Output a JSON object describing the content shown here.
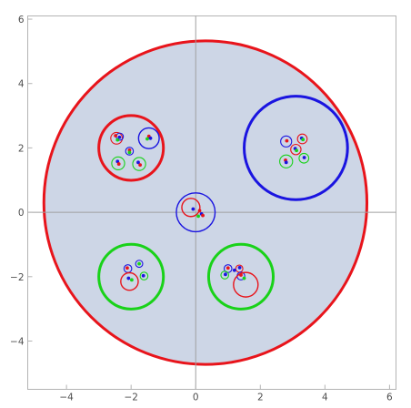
{
  "chart_data": {
    "type": "scatter",
    "title": "",
    "xlabel": "",
    "ylabel": "",
    "xlim": [
      -5.2,
      6.2
    ],
    "ylim": [
      -5.5,
      6.1
    ],
    "x_ticks": [
      -4,
      -2,
      0,
      2,
      4,
      6
    ],
    "y_ticks": [
      -4,
      -2,
      0,
      2,
      4,
      6
    ],
    "x_tick_labels": [
      "−4",
      "−2",
      "0",
      "2",
      "4",
      "6"
    ],
    "y_tick_labels": [
      "−4",
      "−2",
      "0",
      "2",
      "4",
      "6"
    ],
    "grid": false,
    "disk": {
      "cx": 0.3,
      "cy": 0.3,
      "r": 5.0,
      "fill": "#cdd6e6",
      "stroke": "#e8141b"
    },
    "circles": [
      {
        "cx": -2.0,
        "cy": 2.0,
        "r": 1.0,
        "color": "#e8141b"
      },
      {
        "cx": 3.1,
        "cy": 2.0,
        "r": 1.6,
        "color": "#1a14e0"
      },
      {
        "cx": 0.0,
        "cy": 0.0,
        "r": 0.6,
        "color": "#1a14e0"
      },
      {
        "cx": -2.0,
        "cy": -2.0,
        "r": 1.0,
        "color": "#19d219"
      },
      {
        "cx": 1.4,
        "cy": -2.0,
        "r": 1.0,
        "color": "#19d219"
      },
      {
        "cx": -2.45,
        "cy": 2.3,
        "r": 0.18,
        "color": "#e8141b"
      },
      {
        "cx": -2.35,
        "cy": 2.35,
        "r": 0.11,
        "color": "#1a14e0"
      },
      {
        "cx": -1.45,
        "cy": 2.3,
        "r": 0.32,
        "color": "#1a14e0"
      },
      {
        "cx": -2.05,
        "cy": 1.9,
        "r": 0.12,
        "color": "#1a14e0"
      },
      {
        "cx": -2.4,
        "cy": 1.52,
        "r": 0.2,
        "color": "#19d219"
      },
      {
        "cx": -1.75,
        "cy": 1.5,
        "r": 0.2,
        "color": "#19d219"
      },
      {
        "cx": 2.8,
        "cy": 2.2,
        "r": 0.17,
        "color": "#1a14e0"
      },
      {
        "cx": 3.3,
        "cy": 2.28,
        "r": 0.15,
        "color": "#e8141b"
      },
      {
        "cx": 3.1,
        "cy": 1.95,
        "r": 0.16,
        "color": "#e8141b"
      },
      {
        "cx": 2.8,
        "cy": 1.58,
        "r": 0.2,
        "color": "#19d219"
      },
      {
        "cx": 3.35,
        "cy": 1.68,
        "r": 0.15,
        "color": "#19d219"
      },
      {
        "cx": -0.15,
        "cy": 0.15,
        "r": 0.28,
        "color": "#e8141b"
      },
      {
        "cx": -2.1,
        "cy": -1.75,
        "r": 0.12,
        "color": "#1a14e0"
      },
      {
        "cx": -1.75,
        "cy": -1.6,
        "r": 0.11,
        "color": "#1a14e0"
      },
      {
        "cx": -2.05,
        "cy": -2.15,
        "r": 0.27,
        "color": "#e8141b"
      },
      {
        "cx": -1.6,
        "cy": -1.98,
        "r": 0.12,
        "color": "#19d219"
      },
      {
        "cx": 1.0,
        "cy": -1.75,
        "r": 0.12,
        "color": "#1a14e0"
      },
      {
        "cx": 1.35,
        "cy": -1.75,
        "r": 0.11,
        "color": "#e8141b"
      },
      {
        "cx": 1.4,
        "cy": -1.98,
        "r": 0.12,
        "color": "#1a14e0"
      },
      {
        "cx": 0.9,
        "cy": -1.95,
        "r": 0.12,
        "color": "#19d219"
      },
      {
        "cx": 1.55,
        "cy": -2.25,
        "r": 0.38,
        "color": "#e8141b"
      }
    ],
    "points": [
      {
        "x": -2.48,
        "y": 2.38,
        "color": "#e8141b"
      },
      {
        "x": -2.42,
        "y": 2.25,
        "color": "#19d219"
      },
      {
        "x": -2.36,
        "y": 2.33,
        "color": "#1a14e0"
      },
      {
        "x": -1.45,
        "y": 2.36,
        "color": "#e8141b"
      },
      {
        "x": -1.5,
        "y": 2.28,
        "color": "#19d219"
      },
      {
        "x": -1.4,
        "y": 2.3,
        "color": "#1a14e0"
      },
      {
        "x": -2.05,
        "y": 1.93,
        "color": "#e8141b"
      },
      {
        "x": -2.05,
        "y": 1.86,
        "color": "#19d219"
      },
      {
        "x": -2.42,
        "y": 1.58,
        "color": "#1a14e0"
      },
      {
        "x": -2.38,
        "y": 1.5,
        "color": "#e8141b"
      },
      {
        "x": -1.78,
        "y": 1.55,
        "color": "#1a14e0"
      },
      {
        "x": -1.72,
        "y": 1.47,
        "color": "#e8141b"
      },
      {
        "x": 2.82,
        "y": 2.22,
        "color": "#e8141b"
      },
      {
        "x": 3.28,
        "y": 2.3,
        "color": "#1a14e0"
      },
      {
        "x": 3.32,
        "y": 2.26,
        "color": "#19d219"
      },
      {
        "x": 3.08,
        "y": 1.98,
        "color": "#1a14e0"
      },
      {
        "x": 3.12,
        "y": 1.92,
        "color": "#19d219"
      },
      {
        "x": 2.78,
        "y": 1.62,
        "color": "#e8141b"
      },
      {
        "x": 2.8,
        "y": 1.55,
        "color": "#1a14e0"
      },
      {
        "x": 3.36,
        "y": 1.7,
        "color": "#1a14e0"
      },
      {
        "x": -0.08,
        "y": 0.1,
        "color": "#1a14e0"
      },
      {
        "x": 0.12,
        "y": 0.05,
        "color": "#e8141b"
      },
      {
        "x": 0.18,
        "y": -0.05,
        "color": "#1a14e0"
      },
      {
        "x": 0.08,
        "y": -0.12,
        "color": "#19d219"
      },
      {
        "x": 0.22,
        "y": -0.1,
        "color": "#e8141b"
      },
      {
        "x": -2.12,
        "y": -1.73,
        "color": "#e8141b"
      },
      {
        "x": -1.75,
        "y": -1.6,
        "color": "#19d219"
      },
      {
        "x": -2.08,
        "y": -2.05,
        "color": "#1a14e0"
      },
      {
        "x": -1.98,
        "y": -2.1,
        "color": "#19d219"
      },
      {
        "x": -1.62,
        "y": -1.97,
        "color": "#1a14e0"
      },
      {
        "x": 1.0,
        "y": -1.73,
        "color": "#e8141b"
      },
      {
        "x": 1.2,
        "y": -1.8,
        "color": "#1a14e0"
      },
      {
        "x": 1.36,
        "y": -1.72,
        "color": "#1a14e0"
      },
      {
        "x": 1.4,
        "y": -1.95,
        "color": "#e8141b"
      },
      {
        "x": 0.92,
        "y": -1.93,
        "color": "#1a14e0"
      },
      {
        "x": 1.5,
        "y": -2.05,
        "color": "#19d219"
      }
    ]
  }
}
